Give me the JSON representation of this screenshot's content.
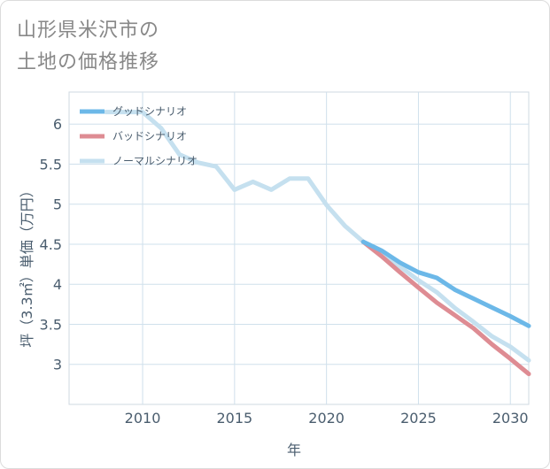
{
  "title_lines": [
    "山形県米沢市の",
    "土地の価格推移"
  ],
  "chart_data": {
    "type": "line",
    "xlabel": "年",
    "ylabel": "坪（3.3㎡）単価（万円）",
    "xlim": [
      2006,
      2031
    ],
    "ylim": [
      2.5,
      6.4
    ],
    "xticks": [
      2010,
      2015,
      2020,
      2025,
      2030
    ],
    "yticks": [
      3,
      3.5,
      4,
      4.5,
      5,
      5.5,
      6
    ],
    "grid": true,
    "legend_position": "top-left",
    "series": [
      {
        "name": "グッドシナリオ",
        "color": "#6cb8e8",
        "x": [
          2022,
          2023,
          2024,
          2025,
          2026,
          2027,
          2028,
          2029,
          2030,
          2031
        ],
        "y": [
          4.53,
          4.42,
          4.27,
          4.15,
          4.08,
          3.93,
          3.82,
          3.71,
          3.6,
          3.48
        ]
      },
      {
        "name": "バッドシナリオ",
        "color": "#de8c93",
        "x": [
          2022,
          2023,
          2024,
          2025,
          2026,
          2027,
          2028,
          2029,
          2030,
          2031
        ],
        "y": [
          4.53,
          4.35,
          4.15,
          3.96,
          3.77,
          3.61,
          3.45,
          3.25,
          3.07,
          2.88
        ]
      },
      {
        "name": "ノーマルシナリオ",
        "color": "#c5e0ef",
        "x": [
          2008,
          2009,
          2010,
          2011,
          2012,
          2013,
          2014,
          2015,
          2016,
          2017,
          2018,
          2019,
          2020,
          2021,
          2022,
          2023,
          2024,
          2025,
          2026,
          2027,
          2028,
          2029,
          2030,
          2031
        ],
        "y": [
          6.15,
          6.15,
          6.15,
          5.95,
          5.62,
          5.52,
          5.47,
          5.18,
          5.28,
          5.18,
          5.32,
          5.32,
          4.99,
          4.73,
          4.53,
          4.38,
          4.22,
          4.05,
          3.9,
          3.7,
          3.53,
          3.35,
          3.22,
          3.05
        ]
      }
    ]
  }
}
